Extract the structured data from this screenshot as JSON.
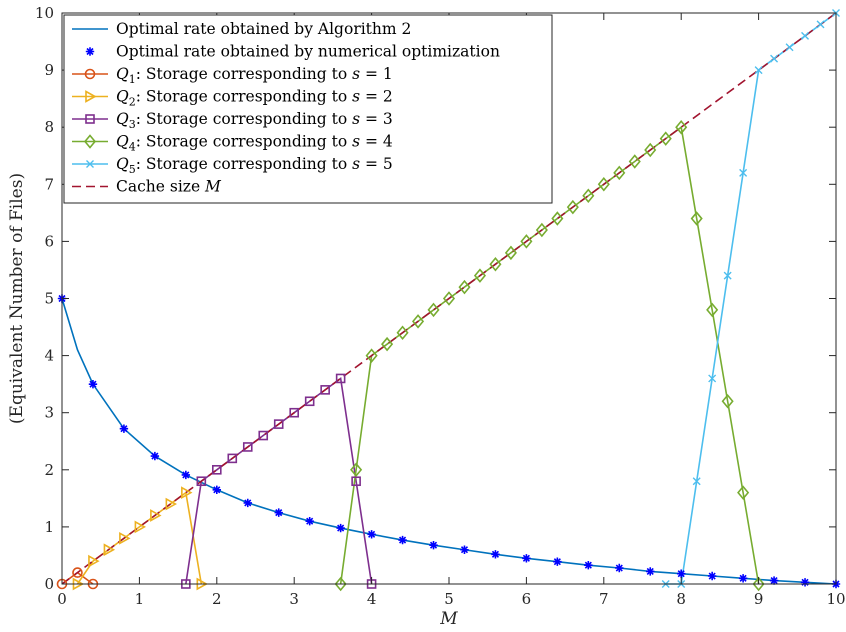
{
  "chart_data": {
    "type": "line",
    "xlabel": "M",
    "ylabel": "(Equivalent Number of Files)",
    "xlim": [
      0,
      10
    ],
    "ylim": [
      0,
      10
    ],
    "xticks": [
      "0",
      "1",
      "2",
      "3",
      "4",
      "5",
      "6",
      "7",
      "8",
      "9",
      "10"
    ],
    "yticks": [
      "0",
      "1",
      "2",
      "3",
      "4",
      "5",
      "6",
      "7",
      "8",
      "9",
      "10"
    ],
    "grid": false,
    "legend_position": "top-left",
    "series": [
      {
        "key": "alg",
        "name": "Optimal rate obtained by Algorithm 2",
        "color": "#0072BD",
        "line": "solid",
        "marker": "none",
        "x": [
          0,
          0.2,
          0.4,
          0.8,
          1.2,
          1.6,
          2.0,
          2.4,
          2.8,
          3.2,
          3.6,
          4.0,
          4.4,
          4.8,
          5.2,
          5.6,
          6.0,
          6.4,
          6.8,
          7.2,
          7.6,
          8.0,
          8.4,
          8.8,
          9.2,
          9.6,
          10.0
        ],
        "y": [
          5,
          4.1,
          3.5,
          2.72,
          2.24,
          1.91,
          1.65,
          1.42,
          1.25,
          1.1,
          0.98,
          0.87,
          0.77,
          0.68,
          0.6,
          0.52,
          0.45,
          0.39,
          0.33,
          0.28,
          0.22,
          0.18,
          0.14,
          0.1,
          0.06,
          0.03,
          0
        ]
      },
      {
        "key": "num",
        "name": "Optimal rate obtained by numerical optimization",
        "color": "#0000FF",
        "line": "none",
        "marker": "asterisk",
        "x": [
          0,
          0.4,
          0.8,
          1.2,
          1.6,
          2.0,
          2.4,
          2.8,
          3.2,
          3.6,
          4.0,
          4.4,
          4.8,
          5.2,
          5.6,
          6.0,
          6.4,
          6.8,
          7.2,
          7.6,
          8.0,
          8.4,
          8.8,
          9.2,
          9.6,
          10.0
        ],
        "y": [
          5,
          3.5,
          2.72,
          2.24,
          1.91,
          1.65,
          1.42,
          1.25,
          1.1,
          0.98,
          0.87,
          0.77,
          0.68,
          0.6,
          0.52,
          0.45,
          0.39,
          0.33,
          0.28,
          0.22,
          0.18,
          0.14,
          0.1,
          0.06,
          0.03,
          0
        ]
      },
      {
        "key": "q1",
        "name_sym": "Q",
        "name_sub": "1",
        "name_text": ": Storage corresponding to ",
        "name_var": "s",
        "name_val": " = 1",
        "color": "#D95319",
        "line": "solid",
        "marker": "circle",
        "x": [
          0,
          0.2,
          0.4
        ],
        "y": [
          0,
          0.2,
          0
        ]
      },
      {
        "key": "q2",
        "name_sym": "Q",
        "name_sub": "2",
        "name_text": ": Storage corresponding to ",
        "name_var": "s",
        "name_val": " = 2",
        "color": "#EDB120",
        "line": "solid",
        "marker": "triangle-right",
        "x": [
          0.2,
          0.4,
          0.6,
          0.8,
          1.0,
          1.2,
          1.4,
          1.6,
          1.8
        ],
        "y": [
          0,
          0.4,
          0.6,
          0.8,
          1.0,
          1.2,
          1.4,
          1.6,
          0
        ]
      },
      {
        "key": "q3",
        "name_sym": "Q",
        "name_sub": "3",
        "name_text": ": Storage corresponding to ",
        "name_var": "s",
        "name_val": " = 3",
        "color": "#7E2F8E",
        "line": "solid",
        "marker": "square",
        "x": [
          1.6,
          1.8,
          2.0,
          2.2,
          2.4,
          2.6,
          2.8,
          3.0,
          3.2,
          3.4,
          3.6,
          3.8,
          4.0
        ],
        "y": [
          0,
          1.8,
          2.0,
          2.2,
          2.4,
          2.6,
          2.8,
          3.0,
          3.2,
          3.4,
          3.6,
          1.8,
          0
        ]
      },
      {
        "key": "q4",
        "name_sym": "Q",
        "name_sub": "4",
        "name_text": ": Storage corresponding to ",
        "name_var": "s",
        "name_val": " = 4",
        "color": "#77AC30",
        "line": "solid",
        "marker": "diamond",
        "x": [
          3.6,
          3.8,
          4.0,
          4.2,
          4.4,
          4.6,
          4.8,
          5.0,
          5.2,
          5.4,
          5.6,
          5.8,
          6.0,
          6.2,
          6.4,
          6.6,
          6.8,
          7.0,
          7.2,
          7.4,
          7.6,
          7.8,
          8.0,
          8.2,
          8.4,
          8.6,
          8.8,
          9.0
        ],
        "y": [
          0,
          2.0,
          4.0,
          4.2,
          4.4,
          4.6,
          4.8,
          5.0,
          5.2,
          5.4,
          5.6,
          5.8,
          6.0,
          6.2,
          6.4,
          6.6,
          6.8,
          7.0,
          7.2,
          7.4,
          7.6,
          7.8,
          8.0,
          6.4,
          4.8,
          3.2,
          1.6,
          0
        ]
      },
      {
        "key": "q5",
        "name_sym": "Q",
        "name_sub": "5",
        "name_text": ": Storage corresponding to ",
        "name_var": "s",
        "name_val": " = 5",
        "color": "#4DBEEE",
        "line": "solid",
        "marker": "x",
        "x": [
          7.8,
          8.0,
          8.2,
          8.4,
          8.6,
          8.8,
          9.0,
          9.2,
          9.4,
          9.6,
          9.8,
          10.0
        ],
        "y": [
          0,
          0,
          1.8,
          3.6,
          5.4,
          7.2,
          9.0,
          9.2,
          9.4,
          9.6,
          9.8,
          10.0
        ]
      },
      {
        "key": "cache",
        "name_text": "Cache size ",
        "name_var": "M",
        "color": "#A2142F",
        "line": "dashed",
        "marker": "none",
        "x": [
          0,
          10
        ],
        "y": [
          0,
          10
        ]
      }
    ]
  }
}
